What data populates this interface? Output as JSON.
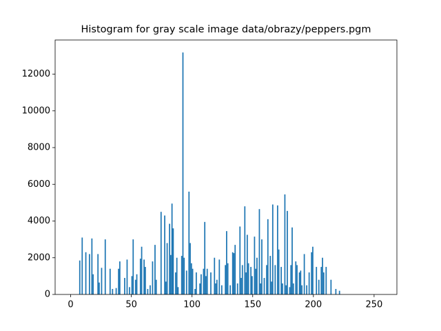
{
  "chart_data": {
    "type": "histogram",
    "title": "Histogram for gray scale image data/obrazy/peppers.pgm",
    "color": "#1f77b4",
    "bins": [
      0,
      1,
      2,
      3,
      4,
      5,
      6,
      7,
      8,
      9,
      10,
      11,
      12,
      13,
      14,
      15,
      16,
      17,
      18,
      19,
      20,
      21,
      22,
      23,
      24,
      25,
      26,
      27,
      28,
      29,
      30,
      31,
      32,
      33,
      34,
      35,
      36,
      37,
      38,
      39,
      40,
      41,
      42,
      43,
      44,
      45,
      46,
      47,
      48,
      49,
      50,
      51,
      52,
      53,
      54,
      55,
      56,
      57,
      58,
      59,
      60,
      61,
      62,
      63,
      64,
      65,
      66,
      67,
      68,
      69,
      70,
      71,
      72,
      73,
      74,
      75,
      76,
      77,
      78,
      79,
      80,
      81,
      82,
      83,
      84,
      85,
      86,
      87,
      88,
      89,
      90,
      91,
      92,
      93,
      94,
      95,
      96,
      97,
      98,
      99,
      100,
      101,
      102,
      103,
      104,
      105,
      106,
      107,
      108,
      109,
      110,
      111,
      112,
      113,
      114,
      115,
      116,
      117,
      118,
      119,
      120,
      121,
      122,
      123,
      124,
      125,
      126,
      127,
      128,
      129,
      130,
      131,
      132,
      133,
      134,
      135,
      136,
      137,
      138,
      139,
      140,
      141,
      142,
      143,
      144,
      145,
      146,
      147,
      148,
      149,
      150,
      151,
      152,
      153,
      154,
      155,
      156,
      157,
      158,
      159,
      160,
      161,
      162,
      163,
      164,
      165,
      166,
      167,
      168,
      169,
      170,
      171,
      172,
      173,
      174,
      175,
      176,
      177,
      178,
      179,
      180,
      181,
      182,
      183,
      184,
      185,
      186,
      187,
      188,
      189,
      190,
      191,
      192,
      193,
      194,
      195,
      196,
      197,
      198,
      199,
      200,
      201,
      202,
      203,
      204,
      205,
      206,
      207,
      208,
      209,
      210,
      211,
      212,
      213,
      214,
      215,
      216,
      217,
      218,
      219,
      220,
      221,
      222,
      223,
      224,
      225,
      226,
      227,
      228,
      229,
      230,
      231,
      232,
      233,
      234,
      235,
      236,
      237,
      238,
      239,
      240,
      241,
      242,
      243,
      244,
      245,
      246,
      247,
      248,
      249,
      250,
      251,
      252,
      253,
      254,
      255,
      256
    ],
    "counts": [
      0,
      0,
      0,
      0,
      0,
      0,
      0,
      1850,
      0,
      3100,
      0,
      0,
      2300,
      0,
      0,
      2200,
      0,
      3050,
      1100,
      0,
      0,
      0,
      2200,
      650,
      0,
      1450,
      0,
      0,
      3000,
      0,
      0,
      0,
      1400,
      0,
      300,
      0,
      0,
      350,
      0,
      1400,
      1800,
      0,
      0,
      0,
      900,
      0,
      1900,
      0,
      400,
      0,
      1000,
      3000,
      0,
      800,
      1100,
      0,
      0,
      1950,
      2600,
      0,
      1900,
      1500,
      0,
      300,
      0,
      500,
      0,
      1800,
      0,
      2700,
      800,
      0,
      0,
      0,
      4500,
      0,
      0,
      4300,
      700,
      2800,
      0,
      3850,
      2150,
      4950,
      3600,
      0,
      1200,
      2000,
      400,
      0,
      0,
      2100,
      13180,
      2000,
      0,
      1300,
      0,
      5600,
      2800,
      1700,
      1400,
      0,
      300,
      1200,
      0,
      0,
      600,
      1100,
      0,
      1400,
      3950,
      1000,
      1400,
      0,
      0,
      1200,
      0,
      0,
      2000,
      600,
      800,
      0,
      1900,
      0,
      500,
      0,
      0,
      1600,
      3450,
      1700,
      0,
      500,
      0,
      2300,
      2250,
      2700,
      0,
      600,
      0,
      3700,
      900,
      1600,
      0,
      4800,
      1200,
      3250,
      1700,
      0,
      1500,
      1000,
      0,
      3150,
      1400,
      2000,
      0,
      4650,
      600,
      3000,
      0,
      900,
      0,
      1600,
      4100,
      0,
      2100,
      700,
      4900,
      0,
      1600,
      0,
      4850,
      2450,
      0,
      1500,
      600,
      0,
      5450,
      500,
      4550,
      0,
      400,
      1600,
      3650,
      600,
      0,
      1800,
      1600,
      0,
      1200,
      1300,
      500,
      0,
      2200,
      0,
      500,
      0,
      1200,
      0,
      2300,
      2600,
      0,
      0,
      1500,
      0,
      800,
      0,
      1500,
      2000,
      1200,
      0,
      1500,
      0,
      0,
      0,
      800,
      0,
      0,
      0,
      300,
      0,
      0,
      200,
      0,
      0,
      0,
      0,
      0,
      0,
      0,
      0,
      0,
      0,
      0,
      0,
      0,
      0,
      0,
      0,
      0,
      0,
      0,
      0,
      0,
      0,
      0,
      0,
      0,
      0,
      0,
      0,
      0,
      0,
      0,
      0,
      0,
      0
    ],
    "xlim": [
      -12.8,
      268.8
    ],
    "xticks": [
      0,
      50,
      100,
      150,
      200,
      250
    ],
    "ylim": [
      0,
      13860
    ],
    "yticks": [
      0,
      2000,
      4000,
      6000,
      8000,
      10000,
      12000
    ]
  }
}
